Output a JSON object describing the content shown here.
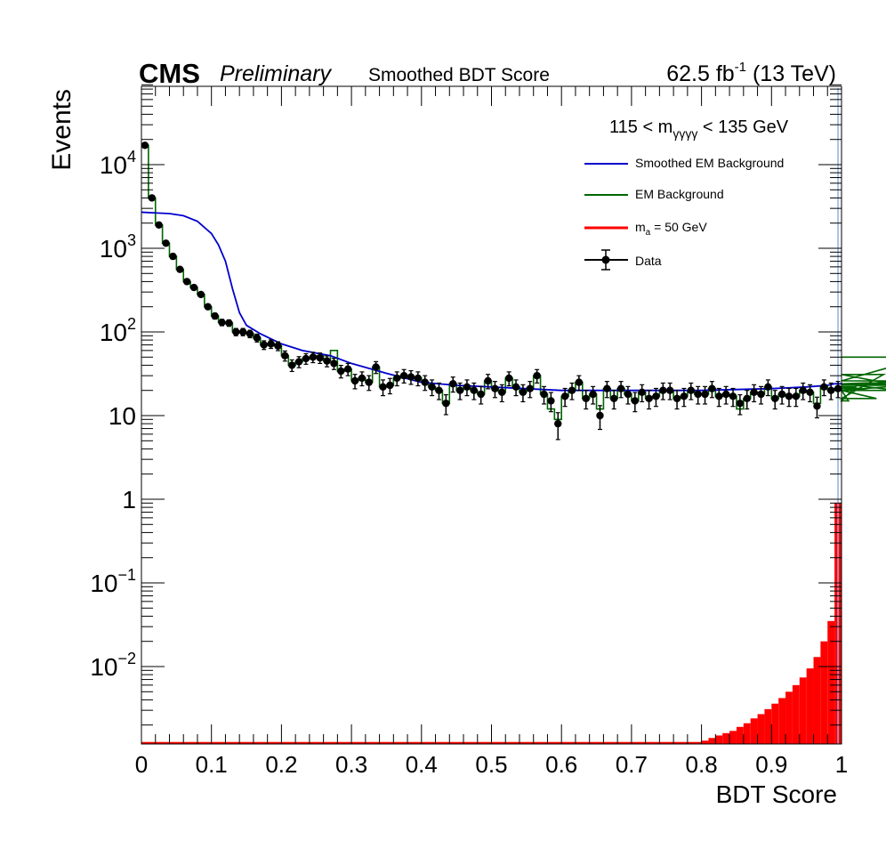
{
  "header": {
    "experiment": "CMS",
    "status": "Preliminary",
    "plot_title": "Smoothed BDT Score",
    "lumi_value": "62.5 fb",
    "lumi_exp": "-1",
    "energy": "(13 TeV)"
  },
  "selection": {
    "pre": "115 < m",
    "sub": "γγγγ",
    "post": "< 135 GeV"
  },
  "legend": {
    "placement": "top-right",
    "entries": [
      {
        "label": "Smoothed EM Background",
        "color": "#0000cc",
        "style": "line"
      },
      {
        "label": "EM Background",
        "color": "#006600",
        "style": "line"
      },
      {
        "label_main": "m",
        "label_sub": "a",
        "label_rest": "= 50 GeV",
        "color": "#ff0000",
        "style": "line"
      },
      {
        "label": "Data",
        "color": "#000000",
        "style": "marker"
      }
    ]
  },
  "chart_data": {
    "type": "histogram",
    "title": "Smoothed BDT Score",
    "xlabel": "BDT Score",
    "ylabel": "Events",
    "xlim": [
      0,
      1
    ],
    "ylim": [
      0.0012,
      90000
    ],
    "yscale": "log",
    "x_ticks": [
      "0",
      "0.1",
      "0.2",
      "0.3",
      "0.4",
      "0.5",
      "0.6",
      "0.7",
      "0.8",
      "0.9",
      "1"
    ],
    "y_ticks": [
      {
        "value": 0.01,
        "base": "10",
        "exp": "−2"
      },
      {
        "value": 0.1,
        "base": "10",
        "exp": "−1"
      },
      {
        "value": 1,
        "base": "1",
        "exp": ""
      },
      {
        "value": 10,
        "base": "10",
        "exp": ""
      },
      {
        "value": 100,
        "base": "10",
        "exp": "2"
      },
      {
        "value": 1000,
        "base": "10",
        "exp": "3"
      },
      {
        "value": 10000,
        "base": "10",
        "exp": "4"
      }
    ],
    "bin_width": 0.01,
    "data_points": [
      17000,
      4000,
      1900,
      1150,
      800,
      560,
      400,
      340,
      280,
      200,
      155,
      130,
      128,
      100,
      100,
      95,
      85,
      70,
      72,
      68,
      52,
      40,
      44,
      48,
      50,
      49,
      45,
      42,
      34,
      36,
      26,
      28,
      25,
      38,
      22,
      23,
      28,
      30,
      29,
      28,
      25,
      22,
      20,
      14,
      24,
      20,
      22,
      20,
      18,
      26,
      21,
      19,
      28,
      22,
      19,
      21,
      30,
      18,
      15,
      8,
      17,
      20,
      25,
      16,
      18,
      10,
      21,
      16,
      21,
      18,
      15,
      19,
      16,
      17,
      20,
      20,
      16,
      17,
      20,
      18,
      18,
      21,
      17,
      18,
      17,
      14,
      16,
      19,
      18,
      22,
      16,
      18,
      17,
      17,
      20,
      19,
      13,
      22,
      20,
      21,
      20,
      15,
      22,
      21,
      20,
      16,
      31,
      24,
      20,
      23,
      24,
      26,
      48
    ],
    "em_background": [
      17000,
      4000,
      1900,
      1150,
      800,
      560,
      400,
      340,
      280,
      200,
      155,
      130,
      128,
      100,
      100,
      95,
      85,
      70,
      72,
      68,
      52,
      40,
      44,
      48,
      50,
      52,
      45,
      60,
      34,
      36,
      26,
      28,
      25,
      38,
      22,
      23,
      28,
      30,
      29,
      28,
      25,
      22,
      20,
      14,
      24,
      20,
      22,
      20,
      18,
      26,
      21,
      19,
      28,
      22,
      19,
      21,
      30,
      18,
      12,
      9,
      17,
      20,
      25,
      16,
      18,
      12,
      21,
      16,
      21,
      18,
      15,
      19,
      16,
      17,
      20,
      20,
      16,
      17,
      20,
      18,
      18,
      21,
      17,
      18,
      17,
      12,
      16,
      19,
      18,
      22,
      16,
      18,
      17,
      17,
      20,
      19,
      14,
      22,
      20,
      21,
      20,
      15,
      22,
      21,
      20,
      16,
      31,
      24,
      20,
      23,
      24,
      26,
      50
    ],
    "smoothed_em_background": {
      "x": [
        0.0,
        0.02,
        0.04,
        0.06,
        0.08,
        0.1,
        0.11,
        0.12,
        0.13,
        0.14,
        0.15,
        0.17,
        0.2,
        0.23,
        0.27,
        0.3,
        0.35,
        0.4,
        0.45,
        0.5,
        0.6,
        0.7,
        0.8,
        0.9,
        0.95,
        0.98,
        0.99,
        1.0
      ],
      "y": [
        2700,
        2650,
        2600,
        2450,
        2100,
        1500,
        1100,
        700,
        330,
        170,
        120,
        95,
        72,
        60,
        52,
        42,
        32,
        25,
        23,
        22,
        20,
        20,
        20,
        21,
        22,
        23,
        24,
        24
      ]
    },
    "signal_ma50": {
      "label": "m_a = 50 GeV",
      "bins_x_start": [
        0.8,
        0.81,
        0.82,
        0.83,
        0.84,
        0.85,
        0.86,
        0.87,
        0.88,
        0.89,
        0.9,
        0.91,
        0.92,
        0.93,
        0.94,
        0.95,
        0.96,
        0.97,
        0.98,
        0.99
      ],
      "values": [
        0.0013,
        0.0014,
        0.0015,
        0.0016,
        0.0017,
        0.0019,
        0.0021,
        0.0024,
        0.0027,
        0.0031,
        0.0036,
        0.0042,
        0.005,
        0.006,
        0.0074,
        0.0095,
        0.013,
        0.02,
        0.035,
        0.9
      ]
    }
  }
}
